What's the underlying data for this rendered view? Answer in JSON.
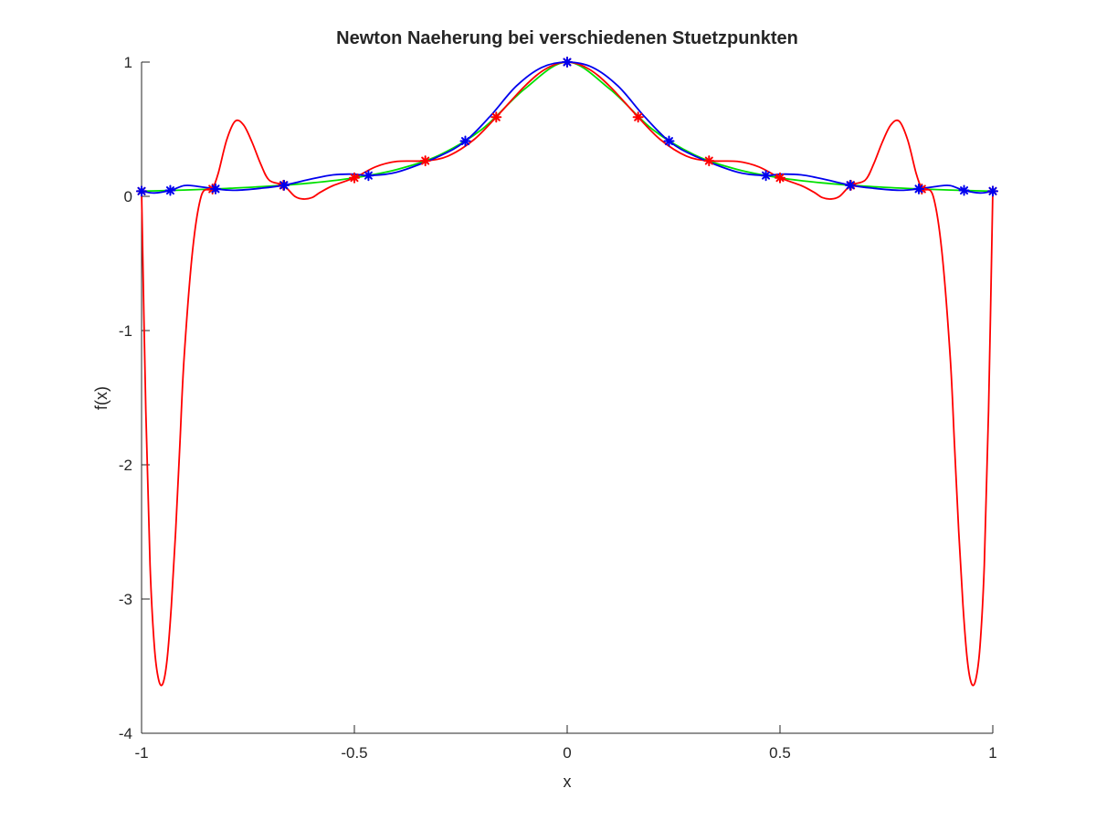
{
  "chart_data": {
    "type": "line",
    "title": "Newton Naeherung bei verschiedenen Stuetzpunkten",
    "xlabel": "x",
    "ylabel": "f(x)",
    "xlim": [
      -1,
      1
    ],
    "ylim": [
      -4,
      1
    ],
    "xticks": [
      -1,
      -0.5,
      0,
      0.5,
      1
    ],
    "xtick_labels": [
      "-1",
      "-0.5",
      "0",
      "0.5",
      "1"
    ],
    "yticks": [
      -4,
      -3,
      -2,
      -1,
      0,
      1
    ],
    "ytick_labels": [
      "-4",
      "-3",
      "-2",
      "-1",
      "0",
      "1"
    ],
    "grid": false,
    "legend": "none",
    "series": [
      {
        "color": "#00e000",
        "marker": "none",
        "x": [
          -1,
          -0.9,
          -0.8,
          -0.7,
          -0.6,
          -0.5,
          -0.4,
          -0.3,
          -0.2,
          -0.1,
          0,
          0.1,
          0.2,
          0.3,
          0.4,
          0.5,
          0.6,
          0.7,
          0.8,
          0.9,
          1
        ],
        "y": [
          0.0385,
          0.047,
          0.0588,
          0.0755,
          0.1,
          0.1379,
          0.2,
          0.3077,
          0.5,
          0.8,
          1,
          0.8,
          0.5,
          0.3077,
          0.2,
          0.1379,
          0.1,
          0.0755,
          0.0588,
          0.047,
          0.0385
        ]
      },
      {
        "color": "#ff0000",
        "marker": "*",
        "nodes_x": [
          -1,
          -0.8333,
          -0.6667,
          -0.5,
          -0.3333,
          -0.1667,
          0,
          0.1667,
          0.3333,
          0.5,
          0.6667,
          0.8333,
          1
        ],
        "nodes_y": [
          0.0385,
          0.0545,
          0.0826,
          0.1379,
          0.2647,
          0.5902,
          1,
          0.5902,
          0.2647,
          0.1379,
          0.0826,
          0.0545,
          0.0385
        ],
        "x": [
          -1,
          -0.99,
          -0.98,
          -0.97,
          -0.96,
          -0.95,
          -0.94,
          -0.93,
          -0.92,
          -0.91,
          -0.9,
          -0.88,
          -0.86,
          -0.84,
          -0.8333,
          -0.82,
          -0.8,
          -0.78,
          -0.76,
          -0.74,
          -0.72,
          -0.7,
          -0.6667,
          -0.64,
          -0.62,
          -0.6,
          -0.58,
          -0.55,
          -0.5,
          -0.45,
          -0.4,
          -0.3333,
          -0.28,
          -0.22,
          -0.1667,
          -0.1,
          -0.05,
          0,
          0.05,
          0.1,
          0.1667,
          0.22,
          0.28,
          0.3333,
          0.4,
          0.45,
          0.5,
          0.55,
          0.58,
          0.6,
          0.62,
          0.64,
          0.6667,
          0.7,
          0.72,
          0.74,
          0.76,
          0.78,
          0.8,
          0.82,
          0.8333,
          0.84,
          0.86,
          0.88,
          0.9,
          0.91,
          0.92,
          0.93,
          0.94,
          0.95,
          0.96,
          0.97,
          0.98,
          0.99,
          1
        ],
        "y": [
          0.0385,
          -1.6,
          -2.75,
          -3.35,
          -3.6,
          -3.63,
          -3.45,
          -3.05,
          -2.5,
          -1.85,
          -1.2,
          -0.4,
          0.0,
          0.05,
          0.0545,
          0.17,
          0.42,
          0.56,
          0.53,
          0.4,
          0.24,
          0.12,
          0.0826,
          0.0,
          -0.02,
          -0.01,
          0.03,
          0.08,
          0.1379,
          0.22,
          0.26,
          0.2647,
          0.3,
          0.42,
          0.5902,
          0.82,
          0.95,
          1,
          0.95,
          0.82,
          0.5902,
          0.42,
          0.3,
          0.2647,
          0.26,
          0.22,
          0.1379,
          0.08,
          0.03,
          -0.01,
          -0.02,
          0.0,
          0.0826,
          0.12,
          0.24,
          0.4,
          0.53,
          0.56,
          0.42,
          0.17,
          0.0545,
          0.05,
          0.0,
          -0.4,
          -1.2,
          -1.85,
          -2.5,
          -3.05,
          -3.45,
          -3.63,
          -3.6,
          -3.35,
          -2.75,
          -1.6,
          0.0385
        ]
      },
      {
        "color": "#0000ee",
        "marker": "*",
        "nodes_x": [
          -1,
          -0.9325,
          -0.8262,
          -0.6652,
          -0.4669,
          -0.2393,
          0,
          0.2393,
          0.4669,
          0.6652,
          0.8262,
          0.9325,
          1
        ],
        "nodes_y": [
          0.0385,
          0.044,
          0.0553,
          0.0829,
          0.1551,
          0.4112,
          1,
          0.4112,
          0.1551,
          0.0829,
          0.0553,
          0.044,
          0.0385
        ],
        "x": [
          -1,
          -0.97,
          -0.9325,
          -0.9,
          -0.87,
          -0.8262,
          -0.78,
          -0.72,
          -0.6652,
          -0.6,
          -0.55,
          -0.5,
          -0.4669,
          -0.4,
          -0.3,
          -0.2393,
          -0.18,
          -0.12,
          -0.06,
          0,
          0.06,
          0.12,
          0.18,
          0.2393,
          0.3,
          0.4,
          0.4669,
          0.5,
          0.55,
          0.6,
          0.6652,
          0.72,
          0.78,
          0.8262,
          0.87,
          0.9,
          0.9325,
          0.97,
          1
        ],
        "y": [
          0.0385,
          0.025,
          0.044,
          0.08,
          0.075,
          0.0553,
          0.045,
          0.06,
          0.0829,
          0.13,
          0.16,
          0.165,
          0.1551,
          0.18,
          0.3,
          0.4112,
          0.6,
          0.82,
          0.96,
          1,
          0.96,
          0.82,
          0.6,
          0.4112,
          0.3,
          0.18,
          0.1551,
          0.165,
          0.16,
          0.13,
          0.0829,
          0.06,
          0.045,
          0.0553,
          0.075,
          0.08,
          0.044,
          0.025,
          0.0385
        ]
      }
    ]
  }
}
